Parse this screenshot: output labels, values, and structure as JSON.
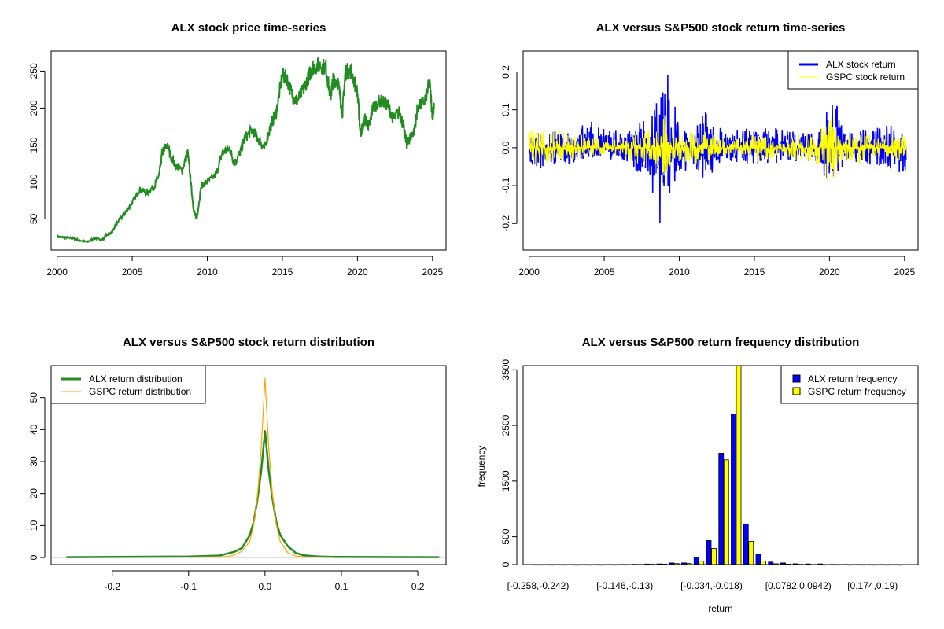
{
  "chart_data": [
    {
      "type": "line",
      "title": "ALX stock price time-series",
      "xlabel": "",
      "ylabel": "",
      "xlim": [
        1999.6,
        2025.9
      ],
      "ylim": [
        8,
        277
      ],
      "xticks": [
        2000,
        2005,
        2010,
        2015,
        2020,
        2025
      ],
      "yticks": [
        50,
        100,
        150,
        200,
        250
      ],
      "color": "#228B22",
      "points": [
        [
          2000,
          26
        ],
        [
          2000.5,
          25
        ],
        [
          2001,
          24
        ],
        [
          2001.5,
          21
        ],
        [
          2002,
          19
        ],
        [
          2002.5,
          24
        ],
        [
          2003,
          22
        ],
        [
          2003.3,
          28
        ],
        [
          2003.7,
          33
        ],
        [
          2004,
          45
        ],
        [
          2004.5,
          58
        ],
        [
          2005,
          72
        ],
        [
          2005.5,
          90
        ],
        [
          2006,
          85
        ],
        [
          2006.5,
          95
        ],
        [
          2006.8,
          110
        ],
        [
          2007,
          140
        ],
        [
          2007.3,
          150
        ],
        [
          2007.8,
          125
        ],
        [
          2008.3,
          115
        ],
        [
          2008.7,
          140
        ],
        [
          2008.9,
          100
        ],
        [
          2009.1,
          60
        ],
        [
          2009.3,
          50
        ],
        [
          2009.6,
          95
        ],
        [
          2010,
          100
        ],
        [
          2010.6,
          110
        ],
        [
          2011,
          140
        ],
        [
          2011.5,
          145
        ],
        [
          2011.8,
          125
        ],
        [
          2012.2,
          140
        ],
        [
          2012.5,
          160
        ],
        [
          2013,
          170
        ],
        [
          2013.5,
          155
        ],
        [
          2013.8,
          145
        ],
        [
          2014.2,
          175
        ],
        [
          2014.6,
          195
        ],
        [
          2015,
          245
        ],
        [
          2015.3,
          240
        ],
        [
          2015.7,
          215
        ],
        [
          2016,
          210
        ],
        [
          2016.4,
          225
        ],
        [
          2016.8,
          245
        ],
        [
          2017,
          255
        ],
        [
          2017.5,
          258
        ],
        [
          2017.9,
          255
        ],
        [
          2018.2,
          215
        ],
        [
          2018.4,
          240
        ],
        [
          2018.7,
          235
        ],
        [
          2019,
          195
        ],
        [
          2019.2,
          250
        ],
        [
          2019.6,
          250
        ],
        [
          2020,
          220
        ],
        [
          2020.2,
          165
        ],
        [
          2020.5,
          185
        ],
        [
          2020.8,
          175
        ],
        [
          2021,
          200
        ],
        [
          2021.5,
          210
        ],
        [
          2022,
          205
        ],
        [
          2022.4,
          185
        ],
        [
          2022.8,
          195
        ],
        [
          2023,
          180
        ],
        [
          2023.3,
          150
        ],
        [
          2023.5,
          160
        ],
        [
          2023.8,
          170
        ],
        [
          2024,
          200
        ],
        [
          2024.5,
          210
        ],
        [
          2024.8,
          235
        ],
        [
          2025,
          190
        ],
        [
          2025.1,
          200
        ]
      ]
    },
    {
      "type": "line",
      "title": "ALX versus S&P500 stock return time-series",
      "xlim": [
        1999.6,
        2025.9
      ],
      "ylim": [
        -0.27,
        0.255
      ],
      "xticks": [
        2000,
        2005,
        2010,
        2015,
        2020,
        2025
      ],
      "yticks": [
        -0.2,
        -0.1,
        0.0,
        0.1,
        0.2
      ],
      "ytick_labels": [
        "-0.2",
        "-0.1",
        "0.0",
        "0.1",
        "0.2"
      ],
      "legend_position": "top-right",
      "series": [
        {
          "name": "ALX stock return",
          "color": "#0000FF"
        },
        {
          "name": "GSPC stock return",
          "color": "#FFFF00"
        }
      ],
      "envelope_columns": [
        "year",
        "alx_max",
        "alx_min",
        "gspc_max",
        "gspc_min"
      ],
      "envelope": [
        [
          2000,
          0.037,
          -0.08,
          0.047,
          -0.04
        ],
        [
          2001,
          0.04,
          -0.05,
          0.05,
          -0.05
        ],
        [
          2002,
          0.047,
          -0.04,
          0.055,
          -0.045
        ],
        [
          2003,
          0.04,
          -0.047,
          0.045,
          -0.035
        ],
        [
          2004,
          0.078,
          -0.03,
          0.03,
          -0.02
        ],
        [
          2005,
          0.05,
          -0.03,
          0.025,
          -0.02
        ],
        [
          2006,
          0.05,
          -0.035,
          0.03,
          -0.025
        ],
        [
          2007,
          0.06,
          -0.075,
          0.035,
          -0.04
        ],
        [
          2008,
          0.08,
          -0.07,
          0.05,
          -0.05
        ],
        [
          2008.8,
          0.175,
          -0.26,
          0.11,
          -0.095
        ],
        [
          2009.3,
          0.225,
          -0.125,
          0.07,
          -0.06
        ],
        [
          2010,
          0.07,
          -0.07,
          0.045,
          -0.04
        ],
        [
          2011,
          0.04,
          -0.05,
          0.04,
          -0.04
        ],
        [
          2011.6,
          0.1,
          -0.088,
          0.045,
          -0.065
        ],
        [
          2012,
          0.09,
          -0.08,
          0.04,
          -0.04
        ],
        [
          2013,
          0.045,
          -0.045,
          0.025,
          -0.025
        ],
        [
          2014,
          0.05,
          -0.045,
          0.025,
          -0.025
        ],
        [
          2015,
          0.055,
          -0.045,
          0.04,
          -0.04
        ],
        [
          2016,
          0.05,
          -0.05,
          0.03,
          -0.03
        ],
        [
          2017,
          0.05,
          -0.03,
          0.015,
          -0.02
        ],
        [
          2018,
          0.04,
          -0.04,
          0.05,
          -0.04
        ],
        [
          2019,
          0.04,
          -0.04,
          0.035,
          -0.035
        ],
        [
          2020.2,
          0.12,
          -0.105,
          0.09,
          -0.128
        ],
        [
          2020.6,
          0.125,
          -0.07,
          0.05,
          -0.05
        ],
        [
          2021,
          0.045,
          -0.05,
          0.03,
          -0.03
        ],
        [
          2022,
          0.05,
          -0.045,
          0.055,
          -0.045
        ],
        [
          2023,
          0.05,
          -0.045,
          0.03,
          -0.03
        ],
        [
          2024,
          0.075,
          -0.055,
          0.03,
          -0.025
        ],
        [
          2024.6,
          0.04,
          -0.077,
          0.035,
          -0.035
        ],
        [
          2025.1,
          0.035,
          -0.06,
          0.03,
          -0.03
        ]
      ]
    },
    {
      "type": "line",
      "title": "ALX versus S&P500 stock return distribution",
      "xlim": [
        -0.28,
        0.237
      ],
      "ylim": [
        -2.2,
        60
      ],
      "xticks": [
        -0.2,
        -0.1,
        0.0,
        0.1,
        0.2
      ],
      "xtick_labels": [
        "-0.2",
        "-0.1",
        "0.0",
        "0.1",
        "0.2"
      ],
      "yticks": [
        0,
        10,
        20,
        30,
        40,
        50
      ],
      "legend_position": "top-left",
      "series": [
        {
          "name": "ALX return distribution",
          "color": "#228B22",
          "points": [
            [
              -0.26,
              0.1
            ],
            [
              -0.1,
              0.3
            ],
            [
              -0.06,
              0.6
            ],
            [
              -0.05,
              1.2
            ],
            [
              -0.04,
              1.8
            ],
            [
              -0.03,
              3
            ],
            [
              -0.02,
              7
            ],
            [
              -0.015,
              11
            ],
            [
              -0.01,
              18
            ],
            [
              -0.005,
              27
            ],
            [
              0,
              39.5
            ],
            [
              0.005,
              27
            ],
            [
              0.01,
              18
            ],
            [
              0.015,
              11
            ],
            [
              0.02,
              7
            ],
            [
              0.03,
              3.5
            ],
            [
              0.04,
              1.5
            ],
            [
              0.05,
              0.7
            ],
            [
              0.07,
              0.3
            ],
            [
              0.09,
              0.2
            ],
            [
              0.228,
              0.1
            ]
          ]
        },
        {
          "name": "GSPC return distribution",
          "color": "#FFA500",
          "points": [
            [
              -0.1,
              0.1
            ],
            [
              -0.05,
              0.3
            ],
            [
              -0.04,
              0.8
            ],
            [
              -0.03,
              2
            ],
            [
              -0.02,
              5
            ],
            [
              -0.015,
              10
            ],
            [
              -0.01,
              19
            ],
            [
              -0.005,
              34
            ],
            [
              0,
              56
            ],
            [
              0.005,
              34
            ],
            [
              0.01,
              19
            ],
            [
              0.015,
              10
            ],
            [
              0.02,
              5
            ],
            [
              0.03,
              1.5
            ],
            [
              0.04,
              0.5
            ],
            [
              0.05,
              0.2
            ],
            [
              0.09,
              0.1
            ]
          ]
        }
      ],
      "baseline_color": "#BEBEBE"
    },
    {
      "type": "bar",
      "title": "ALX versus S&P500 return frequency distribution",
      "xlabel": "return",
      "ylabel": "frequency",
      "ylim": [
        0,
        3575
      ],
      "yticks": [
        0,
        500,
        1500,
        2500,
        3500
      ],
      "bin_start": -0.258,
      "bin_width": 0.016,
      "bin_count": 30,
      "xtick_bins": [
        0,
        7,
        14,
        21,
        27
      ],
      "xtick_labels": [
        "[-0.258,-0.242)",
        "[-0.146,-0.13)",
        "[-0.034,-0.018)",
        "[0.0782,0.0942)",
        "[0.174,0.19)"
      ],
      "legend_position": "top-right",
      "series": [
        {
          "name": "ALX return frequency",
          "color": "#0000FF",
          "values": [
            2,
            2,
            2,
            2,
            2,
            2,
            2,
            3,
            5,
            10,
            12,
            30,
            30,
            133,
            432,
            2000,
            2707,
            730,
            190,
            45,
            30,
            15,
            12,
            12,
            4,
            3,
            3,
            2,
            2,
            2
          ]
        },
        {
          "name": "GSPC return frequency",
          "color": "#FFFF00",
          "values": [
            1,
            1,
            1,
            1,
            1,
            1,
            1,
            2,
            3,
            6,
            8,
            18,
            20,
            62,
            289,
            1882,
            3900,
            417,
            62,
            15,
            8,
            5,
            3,
            2,
            2,
            1,
            1,
            1,
            1,
            1
          ]
        }
      ]
    }
  ]
}
